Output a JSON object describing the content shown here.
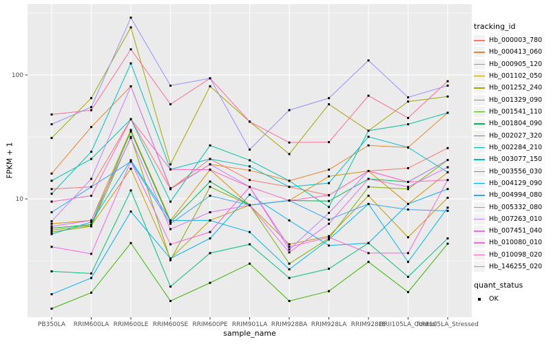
{
  "chart_data": {
    "type": "line",
    "title": "",
    "xlabel": "sample_name",
    "ylabel": "FPKM + 1",
    "y_scale": "log10",
    "ylim": [
      1.11,
      373
    ],
    "y_ticks": [
      10,
      100
    ],
    "y_minor_ticks": [
      3.162,
      31.62,
      316.2
    ],
    "grid": "on",
    "legend_position": "right",
    "legend_title": "tracking_id",
    "quant_status": {
      "title": "quant_status",
      "items": [
        {
          "label": "OK",
          "marker": "black-square"
        }
      ]
    },
    "colors": {
      "panel_bg": "#EBEBEB",
      "grid": "#FFFFFF",
      "point": "#000000",
      "axis_text": "#4D4D4D",
      "tick": "#333333",
      "legend_key_bg": "#F2F2F2"
    },
    "categories": [
      "PB350LA",
      "RRIM600LA",
      "RRIM600LE",
      "RRIM600SE",
      "RRIM600PE",
      "RRIM901LA",
      "RRIM928BA",
      "RRIM928LA",
      "RRIM928LE",
      "RRII105LA_Control",
      "RRII105LA_Stressed"
    ],
    "series": [
      {
        "name": "Hb_000003_780",
        "color": "#F8766D",
        "values": [
          12,
          12.5,
          44,
          12,
          21,
          14.2,
          12.5,
          10.7,
          16.8,
          17.7,
          25.7
        ]
      },
      {
        "name": "Hb_000413_060",
        "color": "#EA8331",
        "values": [
          16,
          38,
          81,
          12.2,
          19,
          17,
          14,
          17.2,
          27,
          26,
          49.5
        ]
      },
      {
        "name": "Hb_000905_120",
        "color": "#D89000",
        "values": [
          6.3,
          6.7,
          36,
          6.7,
          17.2,
          8.9,
          9.7,
          15.2,
          16.8,
          9.1,
          16.4
        ]
      },
      {
        "name": "Hb_001102_050",
        "color": "#C09B00",
        "values": [
          5.6,
          6.1,
          17.5,
          3.3,
          6.7,
          8.9,
          4.3,
          5.0,
          10.6,
          4.9,
          10.2
        ]
      },
      {
        "name": "Hb_001252_240",
        "color": "#A3A500",
        "values": [
          31,
          65,
          242,
          19,
          81,
          42,
          23,
          58,
          35.5,
          61,
          67
        ]
      },
      {
        "name": "Hb_001329_090",
        "color": "#7CAE00",
        "values": [
          5.4,
          6.0,
          31.6,
          3.2,
          12.5,
          8.9,
          3.0,
          4.8,
          12.5,
          12.0,
          20.6
        ]
      },
      {
        "name": "Hb_001541_110",
        "color": "#39B600",
        "values": [
          1.3,
          1.75,
          4.4,
          1.5,
          2.1,
          3.0,
          1.5,
          1.8,
          3.1,
          1.77,
          4.35
        ]
      },
      {
        "name": "Hb_001804_090",
        "color": "#00BB4E",
        "values": [
          5.8,
          6.2,
          35,
          6.5,
          13.8,
          8.9,
          9.7,
          9.6,
          14.5,
          13.7,
          20.6
        ]
      },
      {
        "name": "Hb_002027_320",
        "color": "#00BF7D",
        "values": [
          2.6,
          2.5,
          11.7,
          1.96,
          3.65,
          4.3,
          2.3,
          2.73,
          4.4,
          2.35,
          4.8
        ]
      },
      {
        "name": "Hb_002284_210",
        "color": "#00C1A3",
        "values": [
          14,
          21,
          44,
          9.5,
          27,
          20.5,
          14,
          8.6,
          35.5,
          40,
          49.5
        ]
      },
      {
        "name": "Hb_003077_150",
        "color": "#00BFC4",
        "values": [
          11,
          24,
          124,
          17.3,
          21,
          18.3,
          12.5,
          13.4,
          31.7,
          26,
          16.4
        ]
      },
      {
        "name": "Hb_003556_030",
        "color": "#00B8E7",
        "values": [
          5.2,
          6.5,
          20.5,
          6.7,
          6.7,
          5.4,
          2.7,
          4.7,
          9.1,
          3.1,
          8.5
        ]
      },
      {
        "name": "Hb_004129_090",
        "color": "#00ACFC",
        "values": [
          1.7,
          2.3,
          7.9,
          3.3,
          4.8,
          10.8,
          6.7,
          4.2,
          4.4,
          9.1,
          12
        ]
      },
      {
        "name": "Hb_004994_080",
        "color": "#35A2FF",
        "values": [
          7.8,
          12.5,
          20,
          6.3,
          10.6,
          8.9,
          9.7,
          6.8,
          9.1,
          8.2,
          8.0
        ]
      },
      {
        "name": "Hb_005332_080",
        "color": "#9590FF",
        "values": [
          40,
          55,
          290,
          82,
          94,
          25,
          52,
          65,
          131,
          66,
          82
        ]
      },
      {
        "name": "Hb_007263_010",
        "color": "#C77CFF",
        "values": [
          6.6,
          14.5,
          81,
          12,
          19,
          12.5,
          3.9,
          7.7,
          16.8,
          13.7,
          20.6
        ]
      },
      {
        "name": "Hb_007451_040",
        "color": "#E76BF3",
        "values": [
          6.0,
          6.7,
          31,
          5.7,
          7.8,
          8.9,
          3.7,
          6.3,
          14.5,
          12.5,
          18
        ]
      },
      {
        "name": "Hb_010080_010",
        "color": "#FA62DB",
        "values": [
          4.1,
          3.6,
          20,
          4.3,
          5.4,
          12.5,
          4.1,
          4.9,
          3.65,
          3.65,
          14.2
        ]
      },
      {
        "name": "Hb_010098_020",
        "color": "#FF62BC",
        "values": [
          9.5,
          10.6,
          44,
          17.3,
          17.2,
          12.5,
          9.7,
          10.7,
          16.8,
          13.7,
          14.2
        ]
      },
      {
        "name": "Hb_146255_020",
        "color": "#FF6A98",
        "values": [
          48,
          52,
          161,
          58,
          94,
          42,
          28.5,
          28.7,
          68,
          45,
          89
        ]
      }
    ]
  }
}
